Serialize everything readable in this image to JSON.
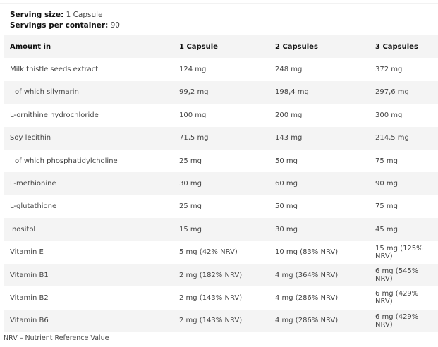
{
  "serving": {
    "size_label": "Serving size:",
    "size_value": "1 Capsule",
    "servings_label": "Servings per container:",
    "servings_value": "90"
  },
  "table": {
    "headers": [
      "Amount in",
      "1 Capsule",
      "2 Capsules",
      "3 Capsules"
    ],
    "rows": [
      {
        "name": "Milk thistle seeds extract",
        "values": [
          "124 mg",
          "248 mg",
          "372 mg"
        ]
      },
      {
        "name": "of which silymarin",
        "values": [
          "99,2 mg",
          "198,4 mg",
          "297,6 mg"
        ]
      },
      {
        "name": "L-ornithine hydrochloride",
        "values": [
          "100 mg",
          "200 mg",
          "300 mg"
        ]
      },
      {
        "name": "Soy lecithin",
        "values": [
          "71,5 mg",
          "143 mg",
          "214,5 mg"
        ]
      },
      {
        "name": "of which phosphatidylcholine",
        "values": [
          "25 mg",
          "50 mg",
          "75 mg"
        ]
      },
      {
        "name": "L-methionine",
        "values": [
          "30 mg",
          "60 mg",
          "90 mg"
        ]
      },
      {
        "name": "L-glutathione",
        "values": [
          "25 mg",
          "50 mg",
          "75 mg"
        ]
      },
      {
        "name": "Inositol",
        "values": [
          "15 mg",
          "30 mg",
          "45 mg"
        ]
      },
      {
        "name": "Vitamin E",
        "values": [
          "5 mg (42% NRV)",
          "10 mg (83% NRV)",
          "15 mg (125% NRV)"
        ]
      },
      {
        "name": "Vitamin B1",
        "values": [
          "2 mg (182% NRV)",
          "4 mg (364% NRV)",
          "6 mg (545% NRV)"
        ]
      },
      {
        "name": "Vitamin B2",
        "values": [
          "2 mg (143% NRV)",
          "4 mg (286% NRV)",
          "6 mg (429% NRV)"
        ]
      },
      {
        "name": "Vitamin B6",
        "values": [
          "2 mg (143% NRV)",
          "4 mg (286% NRV)",
          "6 mg (429% NRV)"
        ]
      }
    ]
  },
  "footnote": "NRV – Nutrient Reference Value"
}
